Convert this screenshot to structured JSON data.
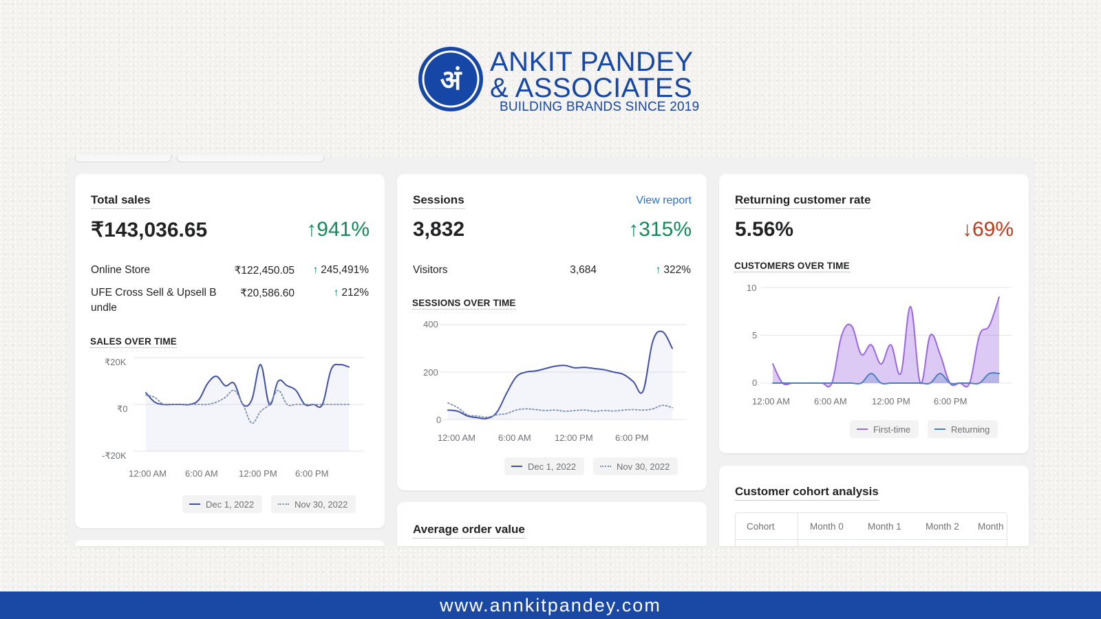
{
  "brand": {
    "logo_glyph": "अं",
    "name_line1": "ANKIT PANDEY",
    "name_line2": "& ASSOCIATES",
    "tagline": "BUILDING BRANDS SINCE 2019",
    "color": "#1747a6"
  },
  "cards": {
    "total_sales": {
      "title": "Total sales",
      "value": "₹143,036.65",
      "delta": "941%",
      "delta_direction": "up",
      "rows": [
        {
          "label": "Online Store",
          "amount": "₹122,450.05",
          "delta": "245,491%"
        },
        {
          "label_line1": "UFE Cross Sell & Upsell B",
          "label_line2": "undle",
          "amount": "₹20,586.60",
          "delta": "212%"
        }
      ],
      "section_label": "SALES OVER TIME",
      "y_ticks": [
        "₹20K",
        "₹0",
        "-₹20K"
      ],
      "x_ticks": [
        "12:00 AM",
        "6:00 AM",
        "12:00 PM",
        "6:00 PM"
      ],
      "legend": [
        "Dec 1, 2022",
        "Nov 30, 2022"
      ]
    },
    "sessions": {
      "title": "Sessions",
      "link": "View report",
      "value": "3,832",
      "delta": "315%",
      "delta_direction": "up",
      "rows": [
        {
          "label": "Visitors",
          "amount": "3,684",
          "delta": "322%"
        }
      ],
      "section_label": "SESSIONS OVER TIME",
      "y_ticks": [
        "400",
        "200",
        "0"
      ],
      "x_ticks": [
        "12:00 AM",
        "6:00 AM",
        "12:00 PM",
        "6:00 PM"
      ],
      "legend": [
        "Dec 1, 2022",
        "Nov 30, 2022"
      ]
    },
    "returning": {
      "title": "Returning customer rate",
      "value": "5.56%",
      "delta": "69%",
      "delta_direction": "down",
      "section_label": "CUSTOMERS OVER TIME",
      "y_ticks": [
        "10",
        "5",
        "0"
      ],
      "x_ticks": [
        "12:00 AM",
        "6:00 AM",
        "12:00 PM",
        "6:00 PM"
      ],
      "legend": [
        "First-time",
        "Returning"
      ]
    },
    "aov": {
      "title": "Average order value"
    },
    "cohort": {
      "title": "Customer cohort analysis",
      "columns": [
        "Cohort",
        "Month 0",
        "Month 1",
        "Month 2",
        "Month"
      ]
    }
  },
  "chart_data": [
    {
      "type": "line",
      "title": "SALES OVER TIME",
      "ylim": [
        -20000,
        20000
      ],
      "x": [
        0,
        1,
        2,
        3,
        4,
        5,
        6,
        7,
        8,
        9,
        10,
        11,
        12,
        13,
        14,
        15,
        16,
        17,
        18,
        19,
        20,
        21,
        22,
        23
      ],
      "series": [
        {
          "name": "Dec 1, 2022",
          "values": [
            5000,
            1000,
            0,
            0,
            0,
            0,
            2000,
            9000,
            12000,
            8000,
            9000,
            0,
            2000,
            17000,
            0,
            10000,
            8000,
            6000,
            0,
            0,
            0,
            15000,
            17000,
            16000
          ]
        },
        {
          "name": "Nov 30, 2022",
          "values": [
            4000,
            3000,
            0,
            0,
            0,
            0,
            0,
            0,
            1000,
            3000,
            6000,
            0,
            -8000,
            -3000,
            0,
            6000,
            0,
            0,
            0,
            0,
            0,
            0,
            0,
            0
          ]
        }
      ]
    },
    {
      "type": "line",
      "title": "SESSIONS OVER TIME",
      "ylim": [
        0,
        400
      ],
      "x": [
        0,
        1,
        2,
        3,
        4,
        5,
        6,
        7,
        8,
        9,
        10,
        11,
        12,
        13,
        14,
        15,
        16,
        17,
        18,
        19,
        20,
        21,
        22,
        23
      ],
      "series": [
        {
          "name": "Dec 1, 2022",
          "values": [
            40,
            35,
            15,
            8,
            5,
            30,
            110,
            180,
            200,
            205,
            215,
            225,
            228,
            218,
            220,
            215,
            210,
            200,
            190,
            160,
            120,
            330,
            370,
            300
          ]
        },
        {
          "name": "Nov 30, 2022",
          "values": [
            70,
            50,
            20,
            15,
            10,
            20,
            25,
            40,
            45,
            42,
            38,
            40,
            35,
            38,
            40,
            35,
            38,
            36,
            40,
            42,
            40,
            45,
            60,
            50
          ]
        }
      ]
    },
    {
      "type": "area",
      "title": "CUSTOMERS OVER TIME",
      "ylim": [
        0,
        10
      ],
      "x": [
        0,
        1,
        2,
        3,
        4,
        5,
        6,
        7,
        8,
        9,
        10,
        11,
        12,
        13,
        14,
        15,
        16,
        17,
        18,
        19,
        20,
        21,
        22,
        23
      ],
      "series": [
        {
          "name": "First-time",
          "values": [
            2,
            0,
            0,
            0,
            0,
            0,
            0,
            5,
            6,
            3,
            4,
            2,
            4,
            1,
            8,
            0,
            5,
            3,
            0,
            0,
            0,
            5,
            6,
            9
          ]
        },
        {
          "name": "Returning",
          "values": [
            0,
            0,
            0,
            0,
            0,
            0,
            0,
            0,
            0,
            0,
            1,
            0,
            0,
            0,
            0,
            0,
            0,
            1,
            0,
            0,
            0,
            0,
            1,
            1
          ]
        }
      ]
    }
  ],
  "footer": {
    "url": "www.annkitpandey.com"
  },
  "colors": {
    "up": "#128a5a",
    "down": "#c4391a",
    "line_primary": "#3f4fa6",
    "line_compare": "#7b8fb5",
    "first_time": "#9a67e0",
    "returning": "#4a7dc0",
    "footer_bg": "#1a49a5"
  }
}
